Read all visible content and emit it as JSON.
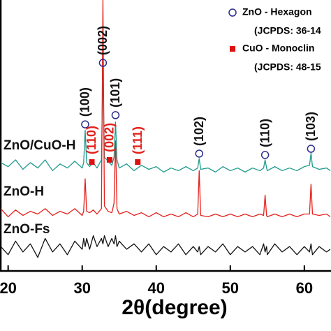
{
  "chart_data": {
    "type": "line",
    "x_label": "2θ(degree)",
    "xlim": [
      18.9,
      63.6
    ],
    "xticks": [
      20,
      30,
      40,
      50,
      60
    ],
    "ylim": [
      0,
      100
    ],
    "x": [
      19,
      20,
      21,
      22,
      23,
      24,
      25,
      26,
      27,
      28,
      29,
      30,
      30.2,
      30.4,
      30.6,
      31,
      31.5,
      32,
      32.6,
      32.8,
      33,
      33.5,
      34,
      34.3,
      34.5,
      34.7,
      35,
      36,
      37,
      38,
      39,
      40,
      41,
      42,
      43,
      44,
      45,
      45.6,
      45.8,
      46,
      47,
      48,
      49,
      50,
      51,
      52,
      53,
      54,
      54.5,
      54.7,
      54.9,
      55,
      56,
      57,
      58,
      59,
      60,
      60.7,
      60.9,
      61.1,
      62,
      63,
      63.5
    ],
    "series": [
      {
        "name": "ZnO/CuO-H",
        "color": "#1f9a8c",
        "values": [
          40,
          38.5,
          41,
          37.5,
          40,
          38,
          41,
          37,
          39.5,
          38,
          40.5,
          38,
          40,
          52,
          40,
          38.5,
          40,
          38,
          41,
          75,
          42,
          40.5,
          39,
          42,
          55,
          41,
          38,
          39.5,
          37,
          39,
          37.5,
          38.5,
          36.5,
          38,
          37,
          38.5,
          37,
          38,
          41.5,
          37.5,
          38,
          36.5,
          38.5,
          37,
          38,
          36.5,
          38,
          37,
          38,
          41,
          38,
          37,
          38.5,
          37,
          38,
          37,
          38.5,
          39,
          43.5,
          38.5,
          37.5,
          38,
          37
        ]
      },
      {
        "name": "ZnO-H",
        "color": "#e3211c",
        "values": [
          23,
          20,
          22.5,
          20.5,
          22,
          21,
          23,
          20.5,
          22,
          21,
          23,
          20.5,
          22,
          34,
          22,
          21.5,
          22.5,
          21,
          23,
          100,
          24,
          22,
          21.5,
          25,
          48,
          23,
          21,
          22,
          20.5,
          21.5,
          20,
          21.5,
          20,
          21,
          20,
          21.5,
          20,
          21,
          37,
          20.5,
          20,
          21,
          20,
          21,
          20,
          21,
          20,
          21,
          20.5,
          28,
          20.5,
          20,
          21,
          20,
          21,
          20,
          21,
          21,
          32,
          21,
          20.5,
          21,
          20
        ]
      },
      {
        "name": "ZnO-Fs",
        "color": "#111111",
        "values": [
          9,
          6,
          11,
          7,
          10,
          5,
          12,
          7,
          10,
          6,
          11,
          8,
          12,
          9,
          12,
          8,
          13,
          9,
          12,
          10,
          13,
          9,
          12,
          10,
          13,
          9,
          11,
          8,
          10,
          7,
          10,
          6,
          9,
          7,
          10,
          6,
          9,
          7,
          9,
          6,
          9,
          7,
          10,
          6,
          9,
          7,
          9,
          6,
          10,
          7,
          9,
          6,
          10,
          7,
          9,
          6,
          9,
          7,
          10,
          6,
          9,
          7,
          8
        ]
      }
    ],
    "legend": [
      {
        "label": "ZnO - Hexagon",
        "note": "(JCPDS: 36-14",
        "symbol": "circle",
        "color": "#2b2b8c",
        "label_color": "#111111"
      },
      {
        "label": "CuO - Monoclin",
        "note": "(JCPDS: 48-15",
        "symbol": "square",
        "color": "#e01010",
        "label_color": "#e3211c"
      }
    ],
    "peaks": [
      {
        "label": "(100)",
        "x": 30.4,
        "y": 54.1,
        "phase": 0
      },
      {
        "label": "(002)",
        "x": 32.8,
        "y": 76.8,
        "phase": 0
      },
      {
        "label": "(101)",
        "x": 34.5,
        "y": 57.5,
        "phase": 0
      },
      {
        "label": "(102)",
        "x": 45.8,
        "y": 43.3,
        "phase": 0
      },
      {
        "label": "(110)",
        "x": 54.7,
        "y": 42.8,
        "phase": 0
      },
      {
        "label": "(103)",
        "x": 60.9,
        "y": 45.1,
        "phase": 0
      },
      {
        "label": "(110)",
        "x": 31.3,
        "y": 40.2,
        "phase": 1
      },
      {
        "label": "(002)",
        "x": 33.7,
        "y": 41.0,
        "phase": 1
      },
      {
        "label": "(111)",
        "x": 37.5,
        "y": 40.2,
        "phase": 1
      }
    ]
  }
}
